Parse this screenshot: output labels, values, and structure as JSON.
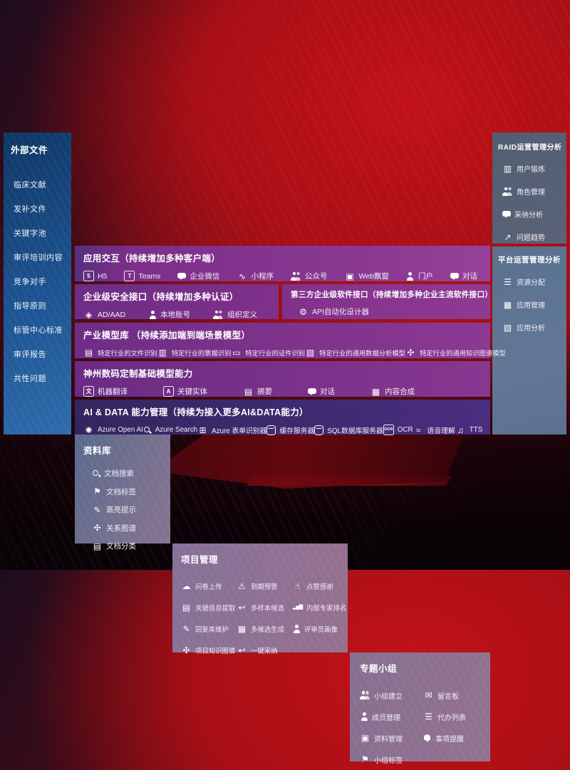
{
  "palette": {
    "background_red": "#a80f15",
    "sidebar_blue": "#1d5493",
    "panel_slate": "#5a6377",
    "panel_slate_blue": "#617795",
    "panel_mauve": "#8a7193",
    "row_purple": "#84348e",
    "row_indigo": "#3d2a6f",
    "text": "#ffffff"
  },
  "sidebar": {
    "title": "外部文件",
    "items": [
      "临床文献",
      "发补文件",
      "关键字池",
      "审评培训内容",
      "竞争对手",
      "指导原则",
      "标管中心标准",
      "审评报告",
      "共性问题"
    ]
  },
  "panels": {
    "library": {
      "title": "资料库",
      "items": [
        {
          "icon": "doc-search",
          "label": "文档搜索"
        },
        {
          "icon": "doc-tag",
          "label": "文档标签"
        },
        {
          "icon": "highlight-pen",
          "label": "高亮提示"
        },
        {
          "icon": "relation-graph",
          "label": "关系图谱"
        },
        {
          "icon": "doc-classify",
          "label": "文档分类"
        }
      ]
    },
    "project": {
      "title": "项目管理",
      "items": [
        {
          "icon": "questionnaire-upload",
          "label": "问卷上传"
        },
        {
          "icon": "key-info-extract",
          "label": "关键信息提取"
        },
        {
          "icon": "reply-maintain",
          "label": "回复库维护"
        },
        {
          "icon": "project-knowledge-graph",
          "label": "项目知识图谱"
        },
        {
          "icon": "expiry-alert",
          "label": "到期预警"
        },
        {
          "icon": "multi-sample-candidate",
          "label": "多样本候选"
        },
        {
          "icon": "multi-candidate-generate",
          "label": "多候选生成"
        },
        {
          "icon": "one-key-adopt",
          "label": "一键采纳"
        },
        {
          "icon": "thumbs-up",
          "label": "点赞感谢"
        },
        {
          "icon": "expert-ranking",
          "label": "内部专家排名"
        },
        {
          "icon": "reviewer-profile",
          "label": "评审员画像"
        }
      ]
    },
    "group": {
      "title": "专题小组",
      "items": [
        {
          "icon": "group-create",
          "label": "小组建立"
        },
        {
          "icon": "member-manage",
          "label": "成员管理"
        },
        {
          "icon": "material-manage",
          "label": "资料管理"
        },
        {
          "icon": "group-tag",
          "label": "小组标签"
        },
        {
          "icon": "message-board",
          "label": "留言板"
        },
        {
          "icon": "todo-list",
          "label": "代办列表"
        },
        {
          "icon": "reminder-bell",
          "label": "事项提醒"
        }
      ]
    },
    "raid": {
      "title": "RAID运营管理分析",
      "items": [
        {
          "icon": "user-card",
          "label": "用户锻炼"
        },
        {
          "icon": "role-manage",
          "label": "角色管理"
        },
        {
          "icon": "adoption-analysis",
          "label": "采纳分析"
        },
        {
          "icon": "issue-trend",
          "label": "问题趋势"
        }
      ]
    },
    "platform": {
      "title": "平台运营管理分析",
      "items": [
        {
          "icon": "resource-alloc",
          "label": "资源分配"
        },
        {
          "icon": "app-manage",
          "label": "应用管理"
        },
        {
          "icon": "app-analysis",
          "label": "应用分析"
        }
      ]
    }
  },
  "rows": {
    "interaction": {
      "title": "应用交互（持续增加多种客户端）",
      "items": [
        {
          "icon": "h5",
          "label": "H5"
        },
        {
          "icon": "teams",
          "label": "Teams"
        },
        {
          "icon": "wecom-chat",
          "label": "企业微信"
        },
        {
          "icon": "miniprogram",
          "label": "小程序"
        },
        {
          "icon": "official-account",
          "label": "公众号"
        },
        {
          "icon": "web-popup",
          "label": "Web飘窗"
        },
        {
          "icon": "portal",
          "label": "门户"
        },
        {
          "icon": "dialog-chat",
          "label": "对话"
        }
      ]
    },
    "security": {
      "title": "企业级安全接口（持续增加多种认证）",
      "items": [
        {
          "icon": "ad-aad-shield",
          "label": "AD/AAD"
        },
        {
          "icon": "local-account",
          "label": "本地账号"
        },
        {
          "icon": "org-define",
          "label": "组织定义"
        }
      ]
    },
    "third_party": {
      "title": "第三方企业级软件接口（持续增加多种企业主流软件接口）",
      "items": [
        {
          "icon": "api-designer-gear",
          "label": "API自动化设计器"
        }
      ]
    },
    "industry": {
      "title": "产业模型库 （持续添加端到端场景模型）",
      "items": [
        {
          "icon": "industry-doc-recognize",
          "label": "特定行业的文件识别"
        },
        {
          "icon": "industry-invoice-recognize",
          "label": "特定行业的票据识别"
        },
        {
          "icon": "industry-idcard-recognize",
          "label": "特定行业的证件识别"
        },
        {
          "icon": "industry-data-model",
          "label": "特定行业的通用数据分析模型"
        },
        {
          "icon": "industry-kg-model",
          "label": "特定行业的通用知识图谱模型"
        }
      ]
    },
    "dcits": {
      "title": "神州数码定制基础模型能力",
      "items": [
        {
          "icon": "machine-translate",
          "label": "机器翻译"
        },
        {
          "icon": "key-entity",
          "label": "关键实体"
        },
        {
          "icon": "summary-doc",
          "label": "摘要"
        },
        {
          "icon": "dialog-chat",
          "label": "对话"
        },
        {
          "icon": "content-compose",
          "label": "内容合成"
        }
      ]
    },
    "aidata": {
      "title": "AI & DATA 能力管理（持续为接入更多AI&DATA能力）",
      "items": [
        {
          "icon": "azure-openai",
          "label": "Azure Open AI"
        },
        {
          "icon": "azure-search",
          "label": "Azure Search"
        },
        {
          "icon": "azure-form-recognizer",
          "label": "Azure 表单识别器"
        },
        {
          "icon": "cache-server",
          "label": "缓存服务器"
        },
        {
          "icon": "sql-server",
          "label": "SQL数据库服务器"
        },
        {
          "icon": "ocr",
          "label": "OCR"
        },
        {
          "icon": "speech-understand",
          "label": "语音理解"
        },
        {
          "icon": "tts",
          "label": "TTS"
        }
      ]
    }
  }
}
